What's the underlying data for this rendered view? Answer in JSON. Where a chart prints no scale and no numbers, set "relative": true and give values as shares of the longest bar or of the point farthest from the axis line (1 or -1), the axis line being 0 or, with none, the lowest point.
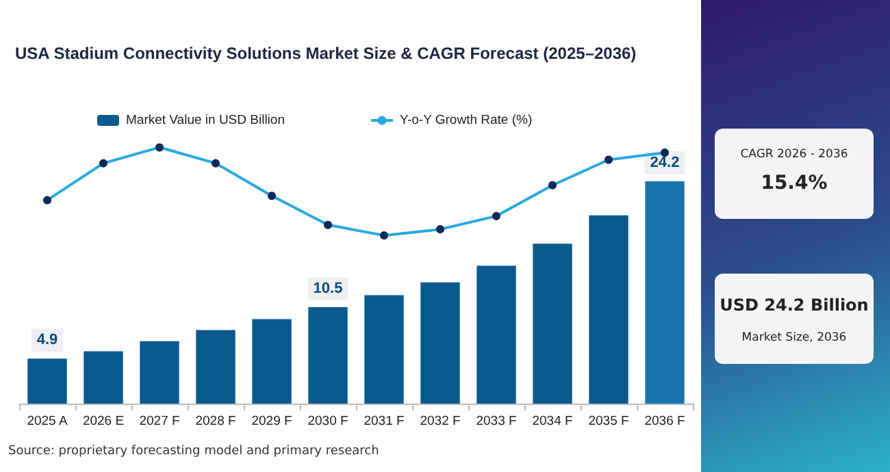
{
  "chart_data": [
    {
      "type": "bar",
      "title": "USA Stadium Connectivity Solutions Market Size & CAGR Forecast (2025–2036)",
      "categories": [
        "2025 A",
        "2026 E",
        "2027 F",
        "2028 F",
        "2029 F",
        "2030 F",
        "2031 F",
        "2032 F",
        "2033 F",
        "2034 F",
        "2035 F",
        "2036 F"
      ],
      "legend": "top",
      "tick_labels": "x",
      "grid": false,
      "series": [
        {
          "name": "Market Value in USD Billion",
          "colors": [
            "#0b5a8e",
            "#0b5a8e",
            "#0b5a8e",
            "#0b5a8e",
            "#0b5a8e",
            "#0b5a8e",
            "#0b5a8e",
            "#0b5a8e",
            "#0b5a8e",
            "#0b5a8e",
            "#0b5a8e",
            "#1a74ae"
          ],
          "values": [
            4.9,
            5.7,
            6.8,
            8.0,
            9.2,
            10.5,
            11.8,
            13.2,
            15.0,
            17.4,
            20.5,
            24.2
          ],
          "value_labels": [
            "4.9",
            null,
            null,
            null,
            null,
            "10.5",
            null,
            null,
            null,
            null,
            null,
            "24.2"
          ]
        }
      ],
      "annotations": [
        "Source: proprietary forecasting model and primary research"
      ]
    },
    {
      "type": "line",
      "relative": true,
      "legend": "top",
      "marker": "circle",
      "categories": [
        null,
        null,
        null,
        null,
        null,
        null,
        null,
        null,
        null,
        null,
        null,
        null
      ],
      "series": [
        {
          "name": "Y-o-Y Growth Rate (%)",
          "color": "#29a8e0",
          "values": [
            0.4,
            0.82,
            1,
            0.82,
            0.45,
            0.12,
            0,
            0.07,
            0.22,
            0.57,
            0.86,
            0.94
          ]
        }
      ]
    },
    {
      "type": "other",
      "annotations": [
        "CAGR 2026 - 2036",
        "15.4%",
        "USD 24.2 Billion",
        "Market Size, 2036"
      ]
    }
  ]
}
